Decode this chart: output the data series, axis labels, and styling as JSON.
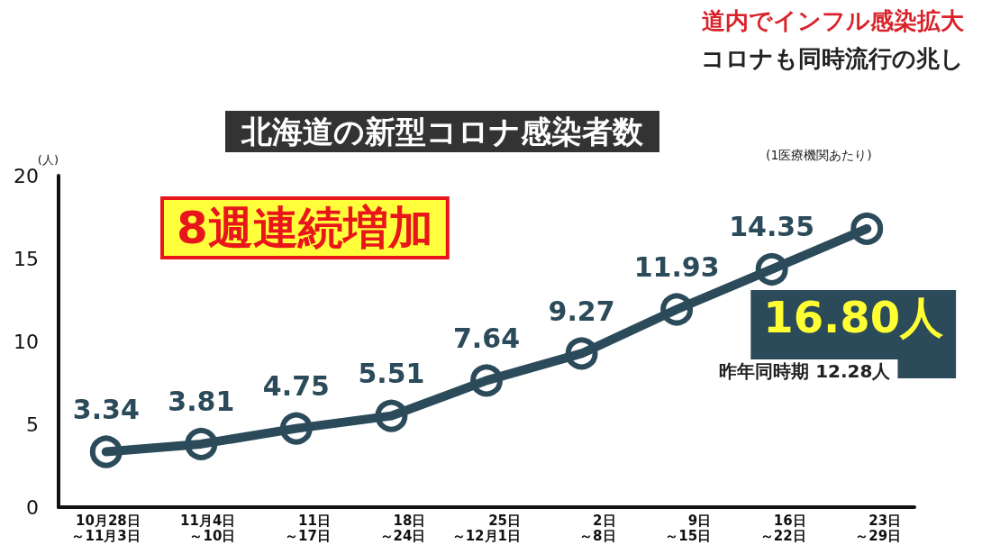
{
  "chart_data": {
    "type": "line",
    "title": "北海道の新型コロナ感染者数",
    "subtitle": "(1医療機関あたり)",
    "ylabel": "(人)",
    "categories": [
      "10月28日～11月3日",
      "11月4日～10日",
      "11日～17日",
      "18日～24日",
      "25日～12月1日",
      "2日～8日",
      "9日～15日",
      "16日～22日",
      "23日～29日"
    ],
    "series": [
      {
        "color": "#2b4a5a",
        "values": [
          3.34,
          3.81,
          4.75,
          5.51,
          7.64,
          9.27,
          11.93,
          14.35,
          16.8
        ],
        "value_labels": [
          "3.34",
          "3.81",
          "4.75",
          "5.51",
          "7.64",
          "9.27",
          "11.93",
          "14.35",
          "16.80人"
        ]
      }
    ],
    "ylim": [
      0,
      20
    ],
    "yticks": [
      0,
      5,
      10,
      15,
      20
    ],
    "grid": false,
    "marker": "circle",
    "line_style": "solid",
    "annotations": [
      "道内でインフル感染拡大",
      "コロナも同時流行の兆し",
      "8週連続増加",
      "昨年同時期 12.28人"
    ]
  }
}
